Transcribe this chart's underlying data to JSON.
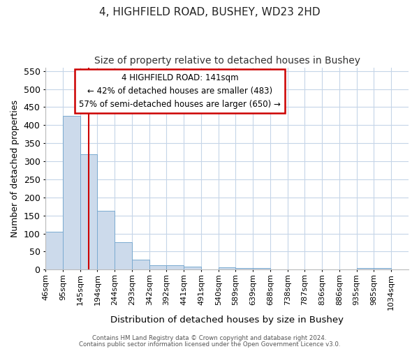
{
  "title": "4, HIGHFIELD ROAD, BUSHEY, WD23 2HD",
  "subtitle": "Size of property relative to detached houses in Bushey",
  "xlabel": "Distribution of detached houses by size in Bushey",
  "ylabel": "Number of detached properties",
  "categories": [
    "46sqm",
    "95sqm",
    "145sqm",
    "194sqm",
    "244sqm",
    "293sqm",
    "342sqm",
    "392sqm",
    "441sqm",
    "491sqm",
    "540sqm",
    "589sqm",
    "639sqm",
    "688sqm",
    "738sqm",
    "787sqm",
    "836sqm",
    "886sqm",
    "935sqm",
    "985sqm",
    "1034sqm"
  ],
  "values": [
    105,
    425,
    320,
    162,
    75,
    27,
    13,
    13,
    9,
    0,
    6,
    5,
    5,
    0,
    0,
    0,
    0,
    0,
    5,
    4,
    0
  ],
  "bar_color": "#ccdaeb",
  "bar_edge_color": "#7aaad0",
  "red_line_x": 2.5,
  "ylim": [
    0,
    560
  ],
  "yticks": [
    0,
    50,
    100,
    150,
    200,
    250,
    300,
    350,
    400,
    450,
    500,
    550
  ],
  "annotation_text_line1": "4 HIGHFIELD ROAD: 141sqm",
  "annotation_text_line2": "← 42% of detached houses are smaller (483)",
  "annotation_text_line3": "57% of semi-detached houses are larger (650) →",
  "annotation_border_color": "#cc0000",
  "footer_line1": "Contains HM Land Registry data © Crown copyright and database right 2024.",
  "footer_line2": "Contains public sector information licensed under the Open Government Licence v3.0.",
  "background_color": "#ffffff",
  "grid_color": "#c5d5e8",
  "title_fontsize": 11,
  "subtitle_fontsize": 10,
  "tick_fontsize": 8
}
